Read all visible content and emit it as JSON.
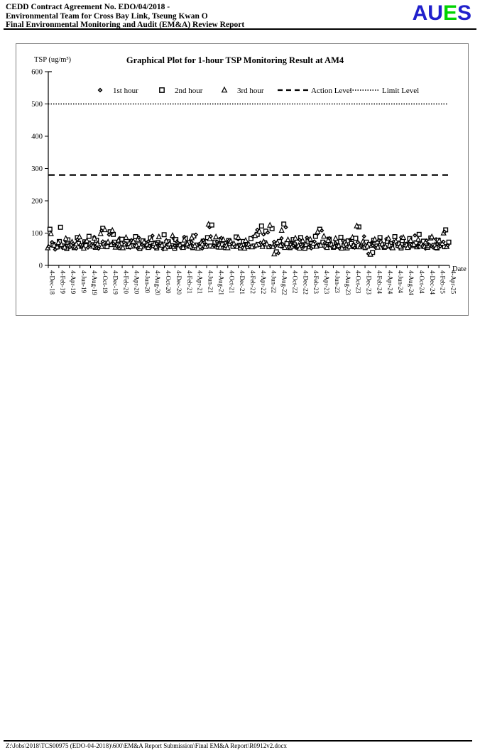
{
  "header": {
    "line1": "CEDD Contract Agreement No. EDO/04/2018 -",
    "line2": "Environmental Team for Cross Bay Link, Tseung Kwan O",
    "line3": "Final Environmental Monitoring and Audit (EM&A) Review Report"
  },
  "logo": {
    "letters": [
      {
        "char": "A",
        "color": "#2020cc"
      },
      {
        "char": "U",
        "color": "#2020cc"
      },
      {
        "char": "E",
        "color": "#00d400"
      },
      {
        "char": "S",
        "color": "#2020cc"
      }
    ]
  },
  "footer": {
    "path": "Z:\\Jobs\\2018\\TCS00975 (EDO-04-2018)\\600\\EM&A Report Submission\\Final EM&A Report\\R0912v2.docx"
  },
  "chart_data": {
    "type": "scatter",
    "title": "Graphical Plot for 1-hour TSP Monitoring Result at AM4",
    "ylabel": "TSP (ug/m³)",
    "xlabel": "Date",
    "ylim": [
      0,
      600
    ],
    "yticks": [
      0,
      100,
      200,
      300,
      400,
      500,
      600
    ],
    "action_level": 280,
    "limit_level": 500,
    "legend": [
      {
        "name": "1st hour",
        "marker": "diamond"
      },
      {
        "name": "2nd hour",
        "marker": "square"
      },
      {
        "name": "3rd hour",
        "marker": "triangle"
      },
      {
        "name": "Action Level",
        "style": "dashed"
      },
      {
        "name": "Limit Level",
        "style": "dotted"
      }
    ],
    "x_tick_labels": [
      "4-Dec-18",
      "4-Feb-19",
      "4-Apr-19",
      "4-Jun-19",
      "4-Aug-19",
      "4-Oct-19",
      "4-Dec-19",
      "4-Feb-20",
      "4-Apr-20",
      "4-Jun-20",
      "4-Aug-20",
      "4-Oct-20",
      "4-Dec-20",
      "4-Feb-21",
      "4-Apr-21",
      "4-Jun-21",
      "4-Aug-21",
      "4-Oct-21",
      "4-Dec-21",
      "4-Feb-22",
      "4-Apr-22",
      "4-Jun-22",
      "4-Aug-22",
      "4-Oct-22",
      "4-Dec-22",
      "4-Feb-23",
      "4-Apr-23",
      "4-Jun-23",
      "4-Aug-23",
      "4-Oct-23",
      "4-Dec-23",
      "4-Feb-24",
      "4-Apr-24",
      "4-Jun-24",
      "4-Aug-24",
      "4-Oct-24",
      "4-Dec-24",
      "4-Feb-25",
      "4-Apr-25"
    ],
    "series": [
      {
        "name": "1st hour",
        "marker": "diamond",
        "values": [
          58,
          72,
          49,
          66,
          60,
          54,
          75,
          62,
          57,
          68,
          52,
          80,
          64,
          58,
          71,
          55,
          63,
          88,
          60,
          52,
          108,
          74,
          66,
          95,
          102,
          68,
          60,
          84,
          57,
          72,
          64,
          55,
          78,
          61,
          53,
          86,
          65,
          58,
          74,
          60,
          92,
          56,
          68,
          62,
          50,
          77,
          64,
          57,
          83,
          61,
          70,
          54,
          88,
          63,
          58,
          72,
          60,
          95,
          66,
          52,
          78,
          64,
          118,
          90,
          61,
          73,
          57,
          85,
          62,
          54,
          76,
          68,
          59,
          81,
          63,
          55,
          73,
          66,
          58,
          89,
          62,
          110,
          70,
          96,
          64,
          102,
          58,
          73,
          60,
          38,
          84,
          66,
          118,
          57,
          70,
          62,
          55,
          79,
          65,
          58,
          86,
          61,
          53,
          74,
          98,
          63,
          108,
          70,
          62,
          84,
          57,
          69,
          61,
          52,
          76,
          64,
          58,
          80,
          66,
          55,
          72,
          60,
          90,
          63,
          36,
          70,
          62,
          54,
          78,
          65,
          57,
          82,
          61,
          53,
          74,
          66,
          58,
          87,
          62,
          55,
          71,
          64,
          93,
          58,
          68,
          60,
          52,
          77,
          63,
          56,
          81,
          66,
          59,
          73,
          104,
          62
        ]
      },
      {
        "name": "2nd hour",
        "marker": "square",
        "values": [
          112,
          65,
          57,
          74,
          118,
          60,
          52,
          79,
          63,
          55,
          86,
          68,
          59,
          73,
          61,
          90,
          64,
          56,
          78,
          62,
          115,
          69,
          58,
          104,
          96,
          72,
          63,
          55,
          81,
          66,
          58,
          74,
          60,
          89,
          64,
          52,
          76,
          68,
          59,
          85,
          62,
          54,
          71,
          66,
          95,
          58,
          73,
          61,
          53,
          80,
          65,
          57,
          84,
          60,
          70,
          55,
          91,
          63,
          58,
          75,
          62,
          86,
          60,
          125,
          72,
          57,
          80,
          64,
          55,
          77,
          68,
          59,
          88,
          62,
          54,
          74,
          66,
          58,
          83,
          60,
          96,
          65,
          122,
          70,
          106,
          58,
          114,
          66,
          42,
          74,
          60,
          128,
          68,
          55,
          80,
          64,
          57,
          86,
          62,
          53,
          75,
          67,
          59,
          90,
          63,
          112,
          72,
          58,
          81,
          64,
          56,
          73,
          60,
          87,
          62,
          54,
          76,
          68,
          58,
          84,
          119,
          63,
          55,
          72,
          65,
          40,
          78,
          60,
          86,
          64,
          56,
          74,
          67,
          59,
          89,
          62,
          54,
          77,
          65,
          57,
          83,
          61,
          70,
          96,
          60,
          75,
          64,
          56,
          85,
          62,
          54,
          78,
          66,
          58,
          110,
          72
        ]
      },
      {
        "name": "3rd hour",
        "marker": "triangle",
        "values": [
          54,
          98,
          62,
          57,
          70,
          64,
          56,
          83,
          60,
          72,
          58,
          66,
          88,
          61,
          53,
          76,
          68,
          59,
          84,
          66,
          98,
          58,
          110,
          72,
          64,
          108,
          56,
          78,
          62,
          54,
          86,
          68,
          59,
          74,
          61,
          80,
          57,
          72,
          64,
          55,
          79,
          67,
          58,
          88,
          62,
          53,
          75,
          66,
          92,
          58,
          71,
          63,
          55,
          78,
          66,
          59,
          85,
          61,
          53,
          70,
          66,
          58,
          127,
          82,
          59,
          88,
          64,
          56,
          79,
          62,
          54,
          74,
          67,
          58,
          86,
          61,
          53,
          77,
          65,
          57,
          92,
          63,
          105,
          58,
          73,
          66,
          124,
          58,
          35,
          70,
          62,
          108,
          55,
          79,
          67,
          59,
          84,
          61,
          53,
          76,
          64,
          57,
          81,
          68,
          59,
          104,
          62,
          90,
          55,
          77,
          65,
          58,
          83,
          61,
          53,
          72,
          66,
          58,
          86,
          62,
          122,
          57,
          74,
          67,
          59,
          34,
          62,
          80,
          56,
          73,
          66,
          58,
          84,
          62,
          54,
          75,
          68,
          59,
          86,
          63,
          55,
          77,
          64,
          57,
          80,
          66,
          58,
          72,
          61,
          88,
          63,
          55,
          76,
          68,
          100,
          58
        ]
      }
    ]
  }
}
